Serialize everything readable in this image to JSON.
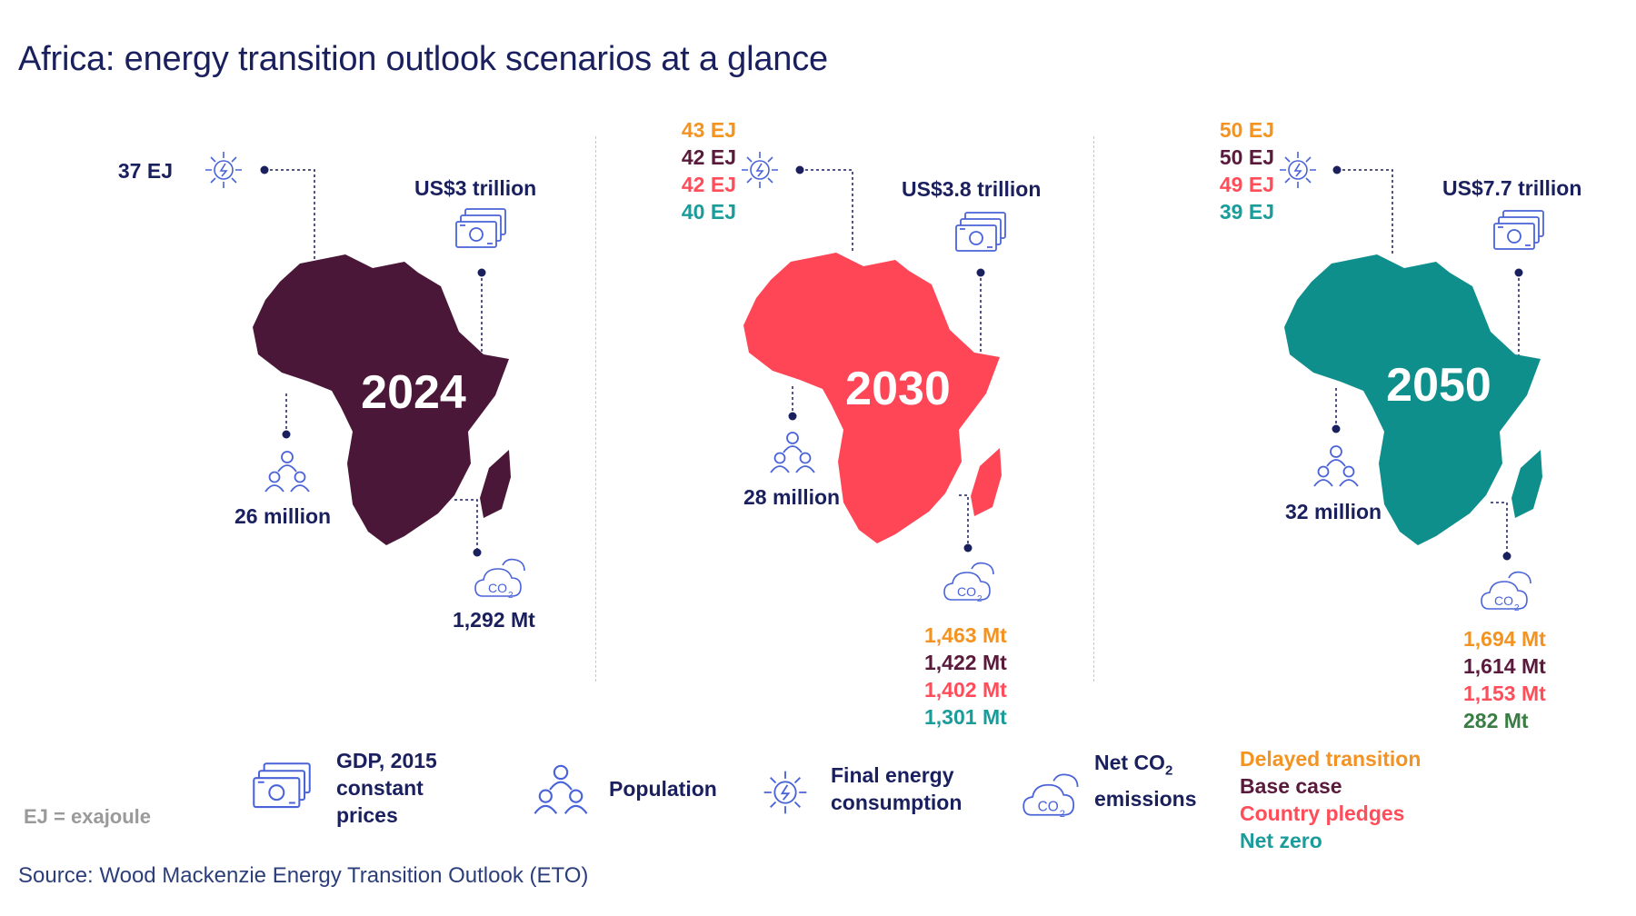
{
  "title": "Africa: energy transition outlook scenarios at a glance",
  "colors": {
    "navy": "#1a1f5e",
    "delayed_transition": "#f39322",
    "base_case": "#5a1a3c",
    "country_pledges": "#ff4d5a",
    "net_zero": "#1a9c9a",
    "map_2024": "#4a1738",
    "map_2030": "#ff4656",
    "map_2050": "#0e8f8c",
    "icon": "#4a63d8"
  },
  "icons": {
    "energy": "sun-gear-icon",
    "gdp": "banknotes-icon",
    "population": "people-icon",
    "emissions": "co2-cloud-icon"
  },
  "panels": [
    {
      "year": "2024",
      "energy": [
        "37 EJ"
      ],
      "gdp": "US$3 trillion",
      "population": "26 million",
      "emissions": [
        "1,292 Mt"
      ]
    },
    {
      "year": "2030",
      "energy": [
        "43 EJ",
        "42 EJ",
        "42 EJ",
        "40 EJ"
      ],
      "gdp": "US$3.8 trillion",
      "population": "28 million",
      "emissions": [
        "1,463 Mt",
        "1,422 Mt",
        "1,402 Mt",
        "1,301 Mt"
      ]
    },
    {
      "year": "2050",
      "energy": [
        "50 EJ",
        "50 EJ",
        "49 EJ",
        "39 EJ"
      ],
      "gdp": "US$7.7 trillion",
      "population": "32 million",
      "emissions": [
        "1,694 Mt",
        "1,614 Mt",
        "1,153 Mt",
        "282 Mt"
      ]
    }
  ],
  "legend": {
    "gdp_label": "GDP, 2015 constant prices",
    "gdp_line1": "GDP, 2015",
    "gdp_line2": "constant",
    "gdp_line3": "prices",
    "population_label": "Population",
    "energy_line1": "Final energy",
    "energy_line2": "consumption",
    "emissions_line1": "Net CO",
    "emissions_sub": "2",
    "emissions_line2": "emissions",
    "scenarios": [
      "Delayed transition",
      "Base case",
      "Country pledges",
      "Net zero"
    ]
  },
  "note": "EJ = exajoule",
  "source": "Source: Wood Mackenzie Energy Transition Outlook (ETO)"
}
